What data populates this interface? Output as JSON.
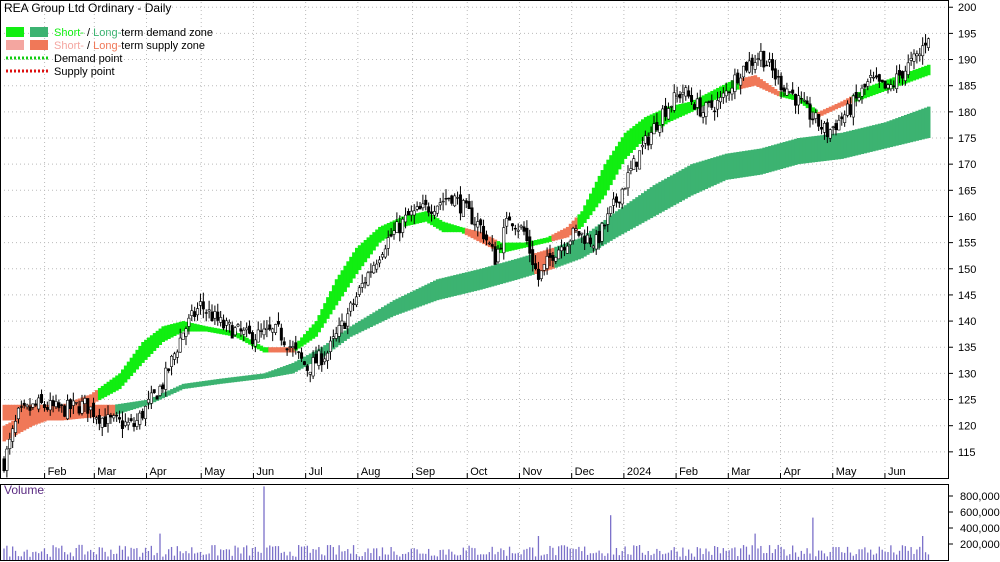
{
  "chart_data": [
    {
      "type": "candlestick",
      "title": "REA Group Ltd Ordinary - Daily",
      "y_ticks": [
        115,
        120,
        125,
        130,
        135,
        140,
        145,
        150,
        155,
        160,
        165,
        170,
        175,
        180,
        185,
        190,
        195,
        200
      ],
      "ylim": [
        110,
        201
      ],
      "x_ticks": [
        "Feb",
        "Mar",
        "Apr",
        "May",
        "Jun",
        "Jul",
        "Aug",
        "Sep",
        "Oct",
        "Nov",
        "Dec",
        "2024",
        "Feb",
        "Mar",
        "Apr",
        "May",
        "Jun"
      ],
      "grid": true,
      "legend_position": "top-left",
      "legend": [
        {
          "parts": [
            "Short-",
            " / ",
            "Long-",
            "term demand zone"
          ],
          "swatches": [
            "#11ee11",
            "#3cb371"
          ]
        },
        {
          "parts": [
            "Short-",
            " / ",
            "Long-",
            "term supply zone"
          ],
          "swatches": [
            "#f4a6a0",
            "#f07858"
          ]
        },
        {
          "parts": [
            "Demand point"
          ],
          "line": "#11cc11"
        },
        {
          "parts": [
            "Supply point"
          ],
          "line": "#dd1111"
        }
      ],
      "colors": {
        "demand_short": "#11ee11",
        "demand_long": "#3cb371",
        "supply_short": "#f4a6a0",
        "supply_long": "#f07858",
        "candle": "#000000"
      },
      "close_path": [
        [
          0,
          113
        ],
        [
          5,
          122
        ],
        [
          12,
          124
        ],
        [
          20,
          123
        ],
        [
          28,
          124
        ],
        [
          35,
          121
        ],
        [
          45,
          120
        ],
        [
          55,
          128
        ],
        [
          62,
          138
        ],
        [
          68,
          143
        ],
        [
          76,
          139
        ],
        [
          85,
          137
        ],
        [
          95,
          138
        ],
        [
          105,
          131
        ],
        [
          112,
          134
        ],
        [
          118,
          140
        ],
        [
          125,
          148
        ],
        [
          132,
          155
        ],
        [
          140,
          160
        ],
        [
          148,
          162
        ],
        [
          155,
          164
        ],
        [
          160,
          161
        ],
        [
          165,
          158
        ],
        [
          170,
          152
        ],
        [
          175,
          160
        ],
        [
          180,
          157
        ],
        [
          185,
          148
        ],
        [
          190,
          153
        ],
        [
          198,
          157
        ],
        [
          205,
          155
        ],
        [
          212,
          163
        ],
        [
          220,
          172
        ],
        [
          228,
          180
        ],
        [
          235,
          184
        ],
        [
          242,
          180
        ],
        [
          248,
          182
        ],
        [
          255,
          188
        ],
        [
          262,
          191
        ],
        [
          268,
          186
        ],
        [
          272,
          184
        ],
        [
          278,
          180
        ],
        [
          285,
          176
        ],
        [
          292,
          180
        ],
        [
          300,
          186
        ],
        [
          306,
          184
        ],
        [
          310,
          187
        ],
        [
          317,
          191
        ],
        [
          320,
          195
        ]
      ],
      "short_zone": [
        [
          0,
          117,
          120
        ],
        [
          10,
          120,
          123
        ],
        [
          20,
          122,
          124
        ],
        [
          30,
          124,
          126
        ],
        [
          40,
          127,
          130
        ],
        [
          48,
          132,
          136
        ],
        [
          55,
          136,
          139
        ],
        [
          62,
          138,
          140
        ],
        [
          70,
          138,
          139
        ],
        [
          80,
          137,
          138
        ],
        [
          90,
          134,
          135
        ],
        [
          100,
          134,
          135
        ],
        [
          108,
          137,
          140
        ],
        [
          115,
          143,
          148
        ],
        [
          122,
          149,
          154
        ],
        [
          130,
          155,
          158
        ],
        [
          138,
          158,
          160
        ],
        [
          146,
          159,
          161
        ],
        [
          152,
          157,
          159
        ],
        [
          158,
          157,
          158
        ],
        [
          165,
          155,
          157
        ],
        [
          172,
          153,
          155
        ],
        [
          180,
          154,
          155
        ],
        [
          188,
          155,
          156
        ],
        [
          195,
          156,
          158
        ],
        [
          200,
          158,
          161
        ],
        [
          208,
          164,
          170
        ],
        [
          215,
          171,
          176
        ],
        [
          222,
          175,
          179
        ],
        [
          230,
          178,
          181
        ],
        [
          238,
          180,
          182
        ],
        [
          245,
          182,
          184
        ],
        [
          252,
          184,
          186
        ],
        [
          260,
          185,
          187
        ],
        [
          268,
          183,
          184
        ],
        [
          275,
          182,
          183
        ],
        [
          282,
          179,
          180
        ],
        [
          290,
          181,
          182
        ],
        [
          300,
          183,
          185
        ],
        [
          310,
          185,
          187
        ],
        [
          320,
          187,
          189
        ]
      ],
      "long_zone": [
        [
          0,
          121,
          124
        ],
        [
          20,
          121,
          124
        ],
        [
          38,
          122,
          124
        ],
        [
          50,
          124,
          125
        ],
        [
          62,
          127,
          128
        ],
        [
          75,
          128,
          129
        ],
        [
          90,
          129,
          130
        ],
        [
          100,
          130,
          132
        ],
        [
          110,
          133,
          135
        ],
        [
          120,
          137,
          139
        ],
        [
          135,
          141,
          144
        ],
        [
          150,
          144,
          148
        ],
        [
          165,
          146,
          150
        ],
        [
          178,
          148,
          152
        ],
        [
          190,
          150,
          154
        ],
        [
          200,
          152,
          156
        ],
        [
          212,
          156,
          161
        ],
        [
          225,
          160,
          166
        ],
        [
          238,
          164,
          170
        ],
        [
          250,
          167,
          172
        ],
        [
          262,
          168,
          173
        ],
        [
          275,
          170,
          175
        ],
        [
          290,
          171,
          176
        ],
        [
          305,
          173,
          178
        ],
        [
          320,
          175,
          181
        ]
      ],
      "supply_periods": [
        [
          0,
          32
        ],
        [
          92,
          100
        ],
        [
          160,
          170
        ],
        [
          190,
          198
        ],
        [
          255,
          268
        ],
        [
          282,
          293
        ]
      ],
      "long_supply_periods": [
        [
          0,
          38
        ],
        [
          184,
          190
        ]
      ]
    },
    {
      "type": "bar",
      "title": "Volume",
      "y_ticks": [
        "200,000",
        "400,000",
        "600,000",
        "800,000"
      ],
      "y_tick_values": [
        200000,
        400000,
        600000,
        800000
      ],
      "ylim": [
        0,
        950000
      ],
      "spikes": [
        {
          "day": 54,
          "value": 330000
        },
        {
          "day": 90,
          "value": 920000
        },
        {
          "day": 185,
          "value": 300000
        },
        {
          "day": 210,
          "value": 560000
        },
        {
          "day": 260,
          "value": 330000
        },
        {
          "day": 280,
          "value": 530000
        },
        {
          "day": 318,
          "value": 300000
        }
      ]
    }
  ]
}
